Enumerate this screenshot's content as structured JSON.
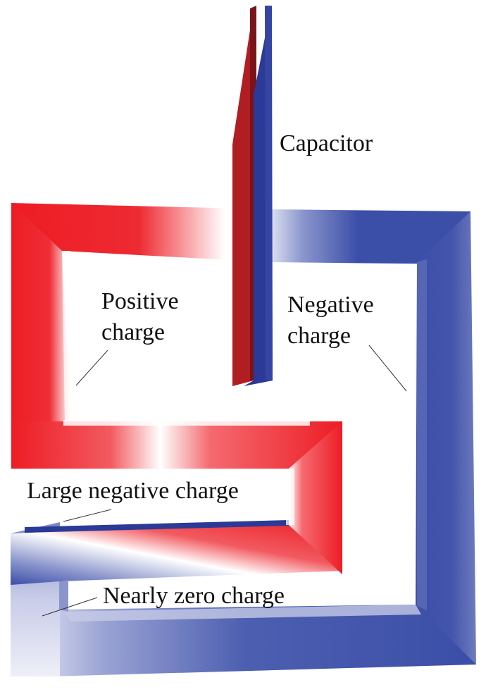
{
  "labels": {
    "capacitor": "Capacitor",
    "positive_line1": "Positive",
    "positive_line2": "charge",
    "negative_line1": "Negative",
    "negative_line2": "charge",
    "large_negative": "Large negative charge",
    "nearly_zero": "Nearly zero charge"
  },
  "colors": {
    "positive": "#ed1c24",
    "negative": "#3b4ea8",
    "neutral": "#ffffff",
    "plate_positive": "#b01e24",
    "plate_negative": "#2b3a96"
  }
}
